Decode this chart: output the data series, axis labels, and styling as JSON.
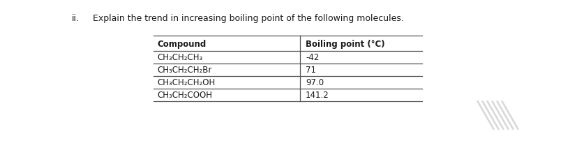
{
  "title_prefix": "ii.",
  "title_text": "Explain the trend in increasing boiling point of the following molecules.",
  "col1_header": "Compound",
  "col2_header": "Boiling point (°C)",
  "compounds": [
    "CH₃CH₂CH₃",
    "CH₃CH₂CH₂Br",
    "CH₃CH₂CH₂OH",
    "CH₃CH₂COOH"
  ],
  "boiling_points": [
    "-42",
    "71",
    "97.0",
    "141.2"
  ],
  "background_color": "#ffffff",
  "text_color": "#1a1a1a",
  "line_color": "#555555",
  "font_size_title": 9.0,
  "font_size_table": 8.5,
  "watermark_color": "#d8d8d8"
}
